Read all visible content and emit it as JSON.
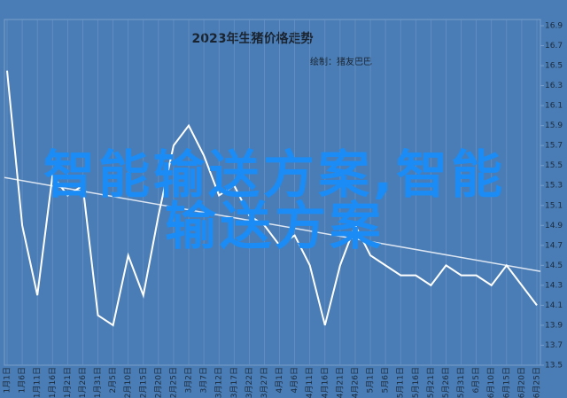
{
  "chart_data": {
    "type": "line",
    "title": "2023年生猪价格走势",
    "subtitle": "绘制：猪友巴巴",
    "watermark": "智能输送方案,智能输送方案",
    "categories": [
      "1月1日",
      "1月6日",
      "1月11日",
      "1月16日",
      "1月21日",
      "1月26日",
      "1月31日",
      "2月5日",
      "2月10日",
      "2月15日",
      "2月20日",
      "2月25日",
      "3月2日",
      "3月7日",
      "3月12日",
      "3月17日",
      "3月22日",
      "3月27日",
      "4月1日",
      "4月6日",
      "4月11日",
      "4月16日",
      "4月21日",
      "4月26日",
      "5月1日",
      "5月6日",
      "5月11日",
      "5月16日",
      "5月21日",
      "5月26日",
      "5月31日",
      "6月5日",
      "6月10日",
      "6月15日",
      "6月20日",
      "6月25日"
    ],
    "values": [
      16.45,
      14.9,
      14.2,
      15.4,
      15.2,
      15.3,
      14.0,
      13.9,
      14.6,
      14.2,
      15.0,
      15.7,
      15.9,
      15.6,
      15.2,
      15.3,
      15.0,
      14.9,
      14.7,
      14.8,
      14.5,
      13.9,
      14.5,
      14.9,
      14.6,
      14.5,
      14.4,
      14.4,
      14.3,
      14.5,
      14.4,
      14.4,
      14.3,
      14.5,
      14.3,
      14.1
    ],
    "color": "#ffffff",
    "trendline": [
      15.38,
      14.44
    ],
    "trend_color": "#dde6f2",
    "ylim": [
      13.5,
      16.9
    ],
    "yticks": [
      13.5,
      13.7,
      13.9,
      14.1,
      14.3,
      14.5,
      14.7,
      14.9,
      15.1,
      15.3,
      15.5,
      15.7,
      15.9,
      16.1,
      16.3,
      16.5,
      16.7,
      16.9
    ],
    "grid": "x"
  }
}
